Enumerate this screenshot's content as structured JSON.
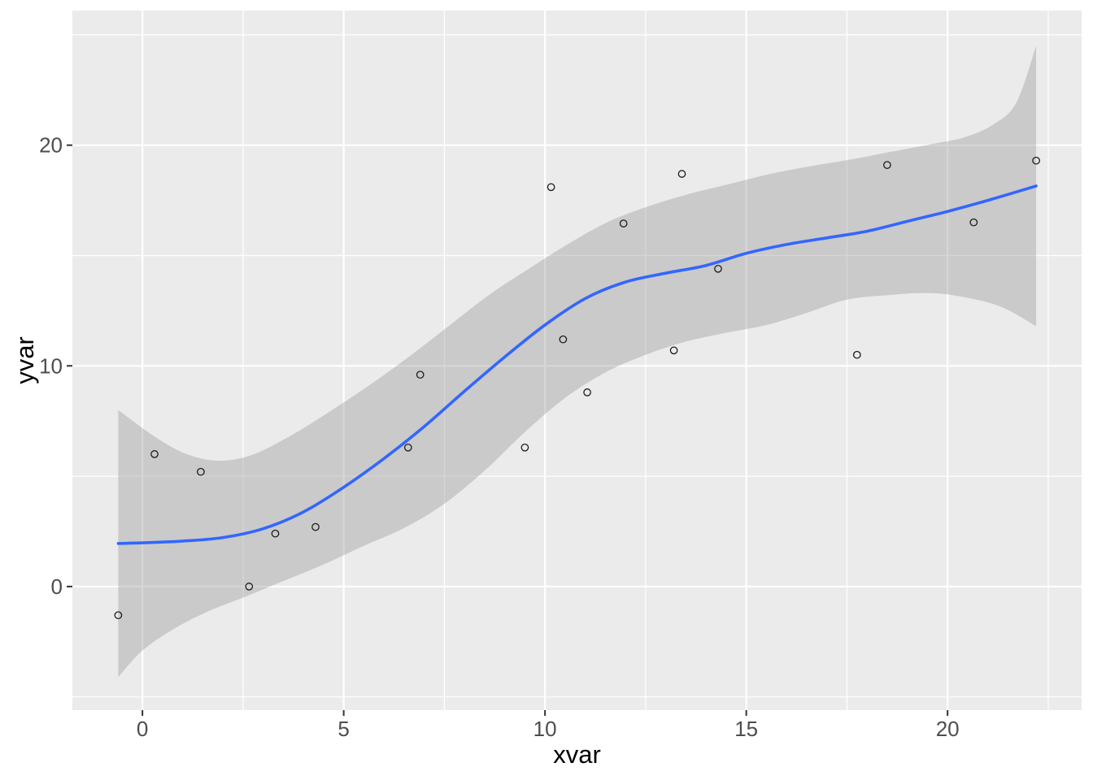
{
  "chart_data": {
    "type": "scatter",
    "title": "",
    "xlabel": "xvar",
    "ylabel": "yvar",
    "xlim": [
      -1.74,
      23.33
    ],
    "ylim": [
      -5.6,
      26.1
    ],
    "x_major_ticks": [
      0,
      5,
      10,
      15,
      20
    ],
    "y_major_ticks": [
      0,
      10,
      20
    ],
    "x_minor_ticks": [
      2.5,
      7.5,
      12.5,
      17.5,
      22.5
    ],
    "y_minor_ticks": [
      -5,
      5,
      15,
      25
    ],
    "x_tick_labels": [
      "0",
      "5",
      "10",
      "15",
      "20"
    ],
    "y_tick_labels": [
      "0",
      "10",
      "20"
    ],
    "grid": true,
    "legend": "none",
    "points": [
      [
        -0.6,
        -1.3
      ],
      [
        0.3,
        6.0
      ],
      [
        1.45,
        5.2
      ],
      [
        2.65,
        0.0
      ],
      [
        3.3,
        2.4
      ],
      [
        4.3,
        2.7
      ],
      [
        6.6,
        6.3
      ],
      [
        6.9,
        9.6
      ],
      [
        9.5,
        6.3
      ],
      [
        10.15,
        18.1
      ],
      [
        10.45,
        11.2
      ],
      [
        11.05,
        8.8
      ],
      [
        11.95,
        16.45
      ],
      [
        13.2,
        10.7
      ],
      [
        13.4,
        18.7
      ],
      [
        14.3,
        14.4
      ],
      [
        17.75,
        10.5
      ],
      [
        18.5,
        19.1
      ],
      [
        20.65,
        16.5
      ],
      [
        22.2,
        19.3
      ]
    ],
    "smooth_line": [
      [
        -0.6,
        1.95
      ],
      [
        0,
        1.98
      ],
      [
        1,
        2.06
      ],
      [
        2,
        2.22
      ],
      [
        3,
        2.62
      ],
      [
        4,
        3.38
      ],
      [
        5,
        4.5
      ],
      [
        6,
        5.8
      ],
      [
        7,
        7.25
      ],
      [
        8,
        8.85
      ],
      [
        9,
        10.4
      ],
      [
        10,
        11.85
      ],
      [
        11,
        13.05
      ],
      [
        12,
        13.8
      ],
      [
        13,
        14.2
      ],
      [
        14,
        14.55
      ],
      [
        15,
        15.1
      ],
      [
        16,
        15.5
      ],
      [
        17,
        15.8
      ],
      [
        18,
        16.1
      ],
      [
        19,
        16.55
      ],
      [
        20,
        17.0
      ],
      [
        21,
        17.5
      ],
      [
        22.2,
        18.15
      ]
    ],
    "ribbon_upper": [
      [
        -0.6,
        8.0
      ],
      [
        0.3,
        6.8
      ],
      [
        1.1,
        6.0
      ],
      [
        1.9,
        5.7
      ],
      [
        2.7,
        5.95
      ],
      [
        3.6,
        6.75
      ],
      [
        4.5,
        7.75
      ],
      [
        5.5,
        8.95
      ],
      [
        6.5,
        10.25
      ],
      [
        7.5,
        11.65
      ],
      [
        8.6,
        13.2
      ],
      [
        9.6,
        14.4
      ],
      [
        10.6,
        15.55
      ],
      [
        11.6,
        16.55
      ],
      [
        12.6,
        17.25
      ],
      [
        13.6,
        17.8
      ],
      [
        14.6,
        18.25
      ],
      [
        15.6,
        18.7
      ],
      [
        16.6,
        19.05
      ],
      [
        17.6,
        19.35
      ],
      [
        18.6,
        19.7
      ],
      [
        19.6,
        20.05
      ],
      [
        20.4,
        20.35
      ],
      [
        21.1,
        20.9
      ],
      [
        21.7,
        21.9
      ],
      [
        22.2,
        24.5
      ]
    ],
    "ribbon_lower": [
      [
        -0.6,
        -4.1
      ],
      [
        0,
        -2.9
      ],
      [
        0.8,
        -1.9
      ],
      [
        1.6,
        -1.15
      ],
      [
        2.5,
        -0.5
      ],
      [
        3.5,
        0.25
      ],
      [
        4.5,
        1.0
      ],
      [
        5.5,
        1.85
      ],
      [
        6.5,
        2.65
      ],
      [
        7.5,
        3.75
      ],
      [
        8.5,
        5.25
      ],
      [
        9.5,
        7.0
      ],
      [
        10.5,
        8.55
      ],
      [
        11.5,
        9.7
      ],
      [
        12.5,
        10.5
      ],
      [
        13.5,
        11.1
      ],
      [
        14.5,
        11.5
      ],
      [
        15.5,
        11.85
      ],
      [
        16.5,
        12.4
      ],
      [
        17.5,
        13.0
      ],
      [
        18.5,
        13.2
      ],
      [
        19.5,
        13.3
      ],
      [
        20.3,
        13.15
      ],
      [
        21.3,
        12.7
      ],
      [
        22.2,
        11.8
      ]
    ]
  },
  "style": {
    "panel_background": "#EBEBEB",
    "grid_color": "#FFFFFF",
    "ribbon_color": "#999999",
    "ribbon_opacity": 0.4,
    "line_color": "#3366FF",
    "point_color": "#1A1A1A",
    "tick_mark_color": "#333333",
    "tick_label_color": "#4D4D4D",
    "axis_title_color": "#000000"
  }
}
